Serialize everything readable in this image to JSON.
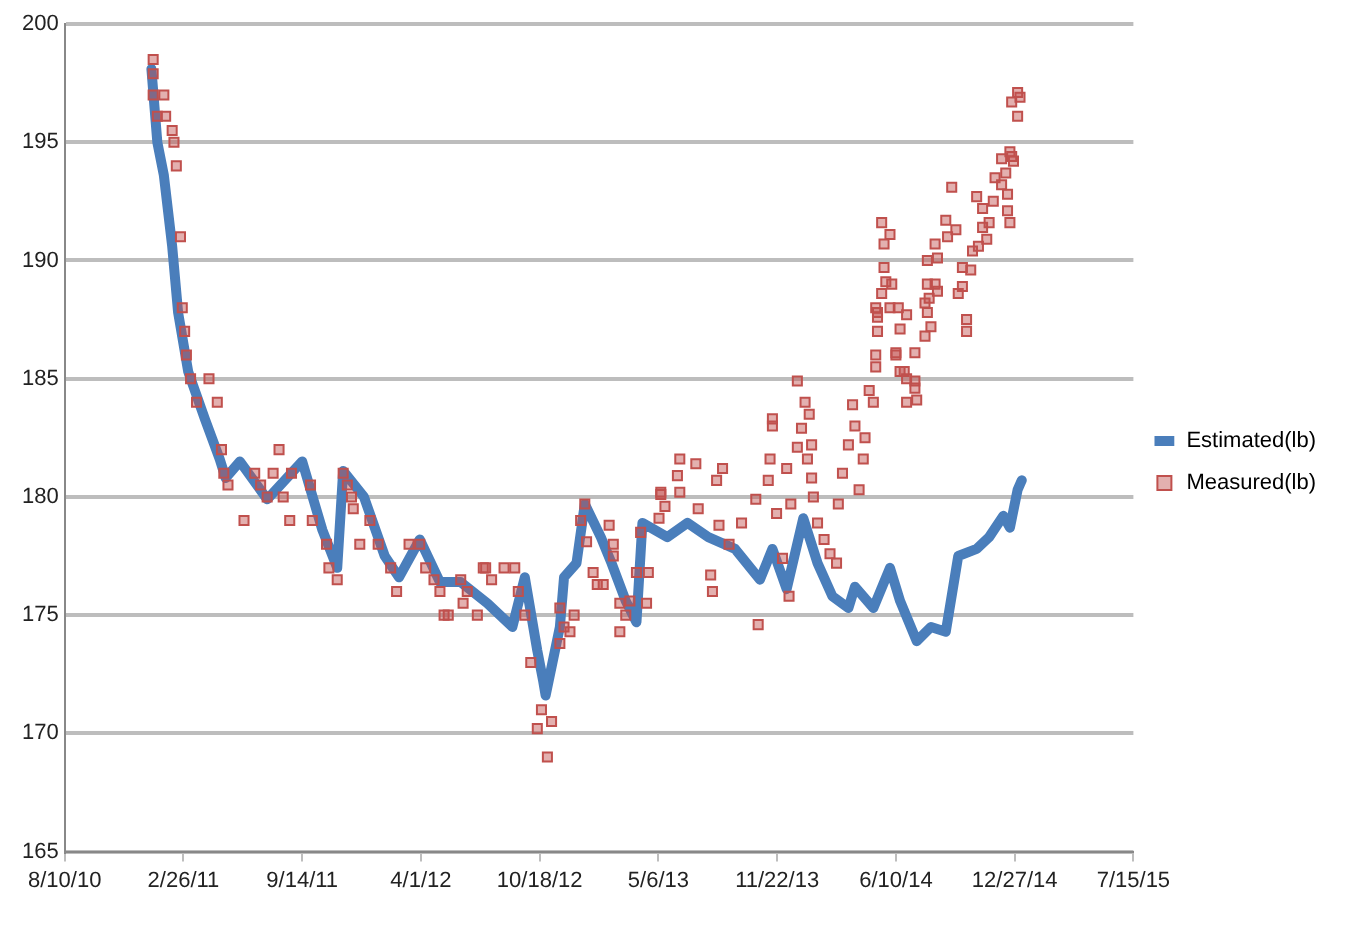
{
  "chart_data": {
    "type": "line",
    "xlim": [
      "2010-08-10",
      "2015-07-15"
    ],
    "xticks": [
      {
        "value": "2010-08-10",
        "label": "8/10/10"
      },
      {
        "value": "2011-02-26",
        "label": "2/26/11"
      },
      {
        "value": "2011-09-14",
        "label": "9/14/11"
      },
      {
        "value": "2012-04-01",
        "label": "4/1/12"
      },
      {
        "value": "2012-10-18",
        "label": "10/18/12"
      },
      {
        "value": "2013-05-06",
        "label": "5/6/13"
      },
      {
        "value": "2013-11-22",
        "label": "11/22/13"
      },
      {
        "value": "2014-06-10",
        "label": "6/10/14"
      },
      {
        "value": "2014-12-27",
        "label": "12/27/14"
      },
      {
        "value": "2015-07-15",
        "label": "7/15/15"
      }
    ],
    "ylim": [
      165,
      200
    ],
    "yticks": [
      165,
      170,
      175,
      180,
      185,
      190,
      195,
      200
    ],
    "grid": "y",
    "legend": "right",
    "series": [
      {
        "name": "Estimated(lb)",
        "color": "#4a7ebb",
        "marker": "none",
        "line_style": "solid",
        "x": [
          "2011-01-03",
          "2011-01-13",
          "2011-01-24",
          "2011-02-07",
          "2011-02-17",
          "2011-03-06",
          "2011-04-03",
          "2011-04-28",
          "2011-05-08",
          "2011-06-01",
          "2011-07-17",
          "2011-09-14",
          "2011-10-18",
          "2011-11-12",
          "2011-11-22",
          "2011-12-27",
          "2012-01-31",
          "2012-02-24",
          "2012-03-30",
          "2012-05-03",
          "2012-06-07",
          "2012-07-22",
          "2012-09-02",
          "2012-09-23",
          "2012-10-14",
          "2012-10-24",
          "2012-10-28",
          "2012-11-21",
          "2012-11-28",
          "2012-12-19",
          "2013-01-02",
          "2013-01-29",
          "2013-02-16",
          "2013-03-12",
          "2013-03-30",
          "2013-04-09",
          "2013-05-21",
          "2013-06-24",
          "2013-07-29",
          "2013-09-12",
          "2013-10-24",
          "2013-11-14",
          "2013-12-08",
          "2014-01-05",
          "2014-01-29",
          "2014-02-23",
          "2014-03-22",
          "2014-04-02",
          "2014-05-03",
          "2014-05-31",
          "2014-06-17",
          "2014-07-15",
          "2014-08-08",
          "2014-09-02",
          "2014-09-23",
          "2014-10-24",
          "2014-11-14",
          "2014-12-08",
          "2014-12-19",
          "2015-01-01",
          "2015-01-08"
        ],
        "values": [
          198.1,
          195,
          193.6,
          190.6,
          187.8,
          185.3,
          183.3,
          181.6,
          180.8,
          181.5,
          179.9,
          181.5,
          178.6,
          177,
          181.1,
          180,
          177.5,
          176.6,
          178.2,
          176.4,
          176.4,
          175.5,
          174.5,
          176.6,
          173.5,
          172.2,
          171.6,
          174.5,
          176.6,
          177.2,
          179.7,
          178.3,
          177.2,
          175.6,
          174.7,
          178.9,
          178.3,
          178.9,
          178.3,
          177.8,
          176.5,
          177.8,
          176.1,
          179.1,
          177.2,
          175.8,
          175.3,
          176.2,
          175.3,
          177,
          175.6,
          173.9,
          174.5,
          174.3,
          177.5,
          177.8,
          178.3,
          179.2,
          178.7,
          180.3,
          180.7
        ]
      },
      {
        "name": "Measured(lb)",
        "type": "scatter",
        "color": "#c0504d",
        "marker": "square",
        "x": [
          "2011-01-06",
          "2011-01-06",
          "2011-01-06",
          "2011-01-13",
          "2011-01-24",
          "2011-01-27",
          "2011-02-07",
          "2011-02-10",
          "2011-02-14",
          "2011-02-21",
          "2011-02-24",
          "2011-02-28",
          "2011-03-03",
          "2011-03-10",
          "2011-03-20",
          "2011-04-10",
          "2011-04-24",
          "2011-05-01",
          "2011-05-05",
          "2011-05-12",
          "2011-06-08",
          "2011-06-26",
          "2011-07-06",
          "2011-07-17",
          "2011-07-27",
          "2011-08-06",
          "2011-08-13",
          "2011-08-24",
          "2011-08-27",
          "2011-09-28",
          "2011-10-01",
          "2011-10-25",
          "2011-10-29",
          "2011-11-12",
          "2011-11-22",
          "2011-11-29",
          "2011-12-06",
          "2011-12-09",
          "2011-12-20",
          "2012-01-06",
          "2012-01-20",
          "2012-02-10",
          "2012-02-20",
          "2012-03-12",
          "2012-03-30",
          "2012-04-09",
          "2012-04-23",
          "2012-05-03",
          "2012-05-10",
          "2012-05-17",
          "2012-06-07",
          "2012-06-11",
          "2012-06-18",
          "2012-07-05",
          "2012-07-15",
          "2012-07-19",
          "2012-07-29",
          "2012-08-19",
          "2012-09-06",
          "2012-09-12",
          "2012-09-23",
          "2012-10-03",
          "2012-10-14",
          "2012-10-21",
          "2012-10-31",
          "2012-11-07",
          "2012-11-21",
          "2012-11-21",
          "2012-11-28",
          "2012-12-08",
          "2012-12-15",
          "2012-12-26",
          "2013-01-02",
          "2013-01-05",
          "2013-01-16",
          "2013-01-23",
          "2013-02-02",
          "2013-02-12",
          "2013-02-19",
          "2013-02-19",
          "2013-03-02",
          "2013-03-02",
          "2013-03-12",
          "2013-03-19",
          "2013-03-30",
          "2013-04-06",
          "2013-04-16",
          "2013-04-19",
          "2013-05-07",
          "2013-05-10",
          "2013-05-10",
          "2013-05-17",
          "2013-06-07",
          "2013-06-11",
          "2013-06-11",
          "2013-07-08",
          "2013-07-12",
          "2013-08-02",
          "2013-08-05",
          "2013-08-12",
          "2013-08-16",
          "2013-08-22",
          "2013-09-02",
          "2013-09-23",
          "2013-10-17",
          "2013-10-21",
          "2013-11-07",
          "2013-11-10",
          "2013-11-14",
          "2013-11-14",
          "2013-11-21",
          "2013-12-01",
          "2013-12-08",
          "2013-12-12",
          "2013-12-15",
          "2013-12-26",
          "2013-12-26",
          "2014-01-02",
          "2014-01-08",
          "2014-01-12",
          "2014-01-15",
          "2014-01-19",
          "2014-01-19",
          "2014-01-22",
          "2014-01-29",
          "2014-02-09",
          "2014-02-19",
          "2014-03-02",
          "2014-03-05",
          "2014-03-12",
          "2014-03-22",
          "2014-03-29",
          "2014-04-02",
          "2014-04-09",
          "2014-04-16",
          "2014-04-19",
          "2014-04-26",
          "2014-05-03",
          "2014-05-07",
          "2014-05-07",
          "2014-05-07",
          "2014-05-10",
          "2014-05-10",
          "2014-05-10",
          "2014-05-17",
          "2014-05-17",
          "2014-05-21",
          "2014-05-21",
          "2014-05-24",
          "2014-05-31",
          "2014-05-31",
          "2014-06-03",
          "2014-06-10",
          "2014-06-10",
          "2014-06-14",
          "2014-06-17",
          "2014-06-17",
          "2014-06-24",
          "2014-06-28",
          "2014-06-28",
          "2014-06-28",
          "2014-07-12",
          "2014-07-12",
          "2014-07-12",
          "2014-07-15",
          "2014-07-29",
          "2014-07-29",
          "2014-08-02",
          "2014-08-02",
          "2014-08-02",
          "2014-08-05",
          "2014-08-08",
          "2014-08-15",
          "2014-08-15",
          "2014-08-19",
          "2014-08-19",
          "2014-09-02",
          "2014-09-05",
          "2014-09-12",
          "2014-09-19",
          "2014-09-23",
          "2014-09-30",
          "2014-09-30",
          "2014-10-07",
          "2014-10-07",
          "2014-10-14",
          "2014-10-17",
          "2014-10-24",
          "2014-10-27",
          "2014-11-03",
          "2014-11-03",
          "2014-11-10",
          "2014-11-14",
          "2014-11-21",
          "2014-11-24",
          "2014-12-05",
          "2014-12-05",
          "2014-12-12",
          "2014-12-15",
          "2014-12-15",
          "2014-12-19",
          "2014-12-19",
          "2014-12-22",
          "2014-12-22",
          "2014-12-25",
          "2015-01-01",
          "2015-01-01",
          "2015-01-05"
        ],
        "values": [
          198.5,
          197.9,
          197,
          196.1,
          197,
          196.1,
          195.5,
          195,
          194,
          191,
          188,
          187,
          186,
          185,
          184,
          185,
          184,
          182,
          181,
          180.5,
          179,
          181,
          180.5,
          180,
          181,
          182,
          180,
          179,
          181,
          180.5,
          179,
          178,
          177,
          176.5,
          181,
          180.5,
          180,
          179.5,
          178,
          179,
          178,
          177,
          176,
          178,
          178,
          177,
          176.5,
          176,
          175,
          175,
          176.5,
          175.5,
          176,
          175,
          177,
          177,
          176.5,
          177,
          177,
          176,
          175,
          173,
          170.2,
          171,
          169,
          170.5,
          175.3,
          173.8,
          174.5,
          174.3,
          175,
          179,
          179.7,
          178.1,
          176.8,
          176.3,
          176.3,
          178.8,
          178,
          177.5,
          175.5,
          174.3,
          175,
          175.6,
          176.8,
          178.5,
          175.5,
          176.8,
          179.1,
          180.1,
          180.2,
          179.6,
          180.9,
          181.6,
          180.2,
          181.4,
          179.5,
          176.7,
          176,
          180.7,
          178.8,
          181.2,
          178,
          178.9,
          179.9,
          174.6,
          180.7,
          181.6,
          183.3,
          183,
          179.3,
          177.4,
          181.2,
          175.8,
          179.7,
          184.9,
          182.1,
          182.9,
          184,
          181.6,
          183.5,
          182.2,
          180.8,
          180,
          178.9,
          178.2,
          177.6,
          177.2,
          179.7,
          181,
          182.2,
          183.9,
          183,
          180.3,
          181.6,
          182.5,
          184.5,
          184,
          186,
          185.5,
          188,
          187,
          187.8,
          187.6,
          188.6,
          191.6,
          190.7,
          189.7,
          189.1,
          188,
          191.1,
          189,
          186,
          186.1,
          188,
          187.1,
          185.3,
          185.3,
          187.7,
          185,
          184,
          184.9,
          184.6,
          186.1,
          184.1,
          186.8,
          188.2,
          187.8,
          189,
          190,
          188.4,
          187.2,
          189,
          190.7,
          188.7,
          190.1,
          191.7,
          191,
          193.1,
          191.3,
          188.6,
          188.9,
          189.7,
          187.5,
          187,
          189.6,
          190.4,
          192.7,
          190.6,
          192.2,
          191.4,
          190.9,
          191.6,
          192.5,
          193.5,
          193.2,
          194.3,
          193.7,
          192.8,
          192.1,
          194.6,
          191.6,
          194.4,
          196.7,
          194.2,
          197.1,
          196.1,
          196.9
        ]
      }
    ]
  }
}
